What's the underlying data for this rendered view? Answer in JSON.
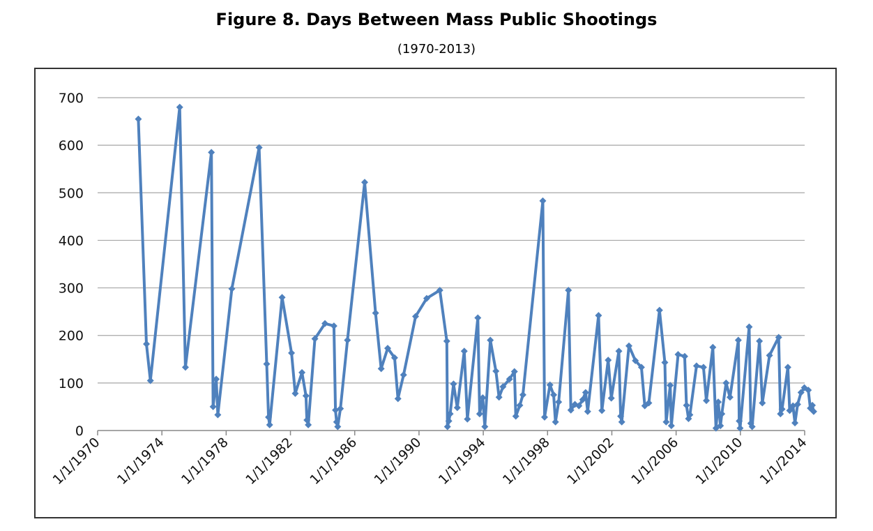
{
  "chart_data": {
    "type": "line",
    "title": "Figure 8. Days Between Mass Public Shootings",
    "subtitle": "(1970-2013)",
    "xlabel": "",
    "ylabel": "",
    "ylim": [
      0,
      700
    ],
    "yticks": [
      0,
      100,
      200,
      300,
      400,
      500,
      600,
      700
    ],
    "xlim": [
      "1970-01-01",
      "2014-01-01"
    ],
    "xtick_labels": [
      "1/1/1970",
      "1/1/1974",
      "1/1/1978",
      "1/1/1982",
      "1/1/1986",
      "1/1/1990",
      "1/1/1994",
      "1/1/1998",
      "1/1/2002",
      "1/1/2006",
      "1/1/2010",
      "1/1/2014"
    ],
    "grid": true,
    "legend": "none",
    "series_color": "#4f81bd",
    "series": [
      {
        "points": [
          [
            "1972-07-15",
            655
          ],
          [
            "1973-01-15",
            182
          ],
          [
            "1973-04-15",
            105
          ],
          [
            "1975-02-10",
            680
          ],
          [
            "1975-06-20",
            133
          ],
          [
            "1977-01-30",
            585
          ],
          [
            "1977-03-10",
            50
          ],
          [
            "1977-05-20",
            108
          ],
          [
            "1977-06-25",
            33
          ],
          [
            "1978-05-10",
            298
          ],
          [
            "1980-01-20",
            595
          ],
          [
            "1980-07-10",
            140
          ],
          [
            "1980-08-20",
            28
          ],
          [
            "1980-09-15",
            12
          ],
          [
            "1981-06-25",
            280
          ],
          [
            "1982-01-25",
            163
          ],
          [
            "1982-04-20",
            78
          ],
          [
            "1982-09-20",
            122
          ],
          [
            "1982-12-20",
            73
          ],
          [
            "1983-01-10",
            22
          ],
          [
            "1983-02-10",
            12
          ],
          [
            "1983-07-10",
            193
          ],
          [
            "1984-02-25",
            225
          ],
          [
            "1984-09-15",
            220
          ],
          [
            "1984-10-20",
            43
          ],
          [
            "1984-11-15",
            18
          ],
          [
            "1984-12-10",
            8
          ],
          [
            "1985-02-10",
            46
          ],
          [
            "1985-07-20",
            190
          ],
          [
            "1986-08-15",
            522
          ],
          [
            "1987-04-20",
            247
          ],
          [
            "1987-08-25",
            130
          ],
          [
            "1988-01-20",
            173
          ],
          [
            "1988-06-25",
            153
          ],
          [
            "1988-09-10",
            67
          ],
          [
            "1989-01-15",
            117
          ],
          [
            "1989-10-15",
            240
          ],
          [
            "1990-06-25",
            278
          ],
          [
            "1991-04-20",
            295
          ],
          [
            "1991-09-25",
            188
          ],
          [
            "1991-10-10",
            8
          ],
          [
            "1991-11-10",
            20
          ],
          [
            "1991-12-10",
            35
          ],
          [
            "1992-02-25",
            98
          ],
          [
            "1992-05-20",
            48
          ],
          [
            "1992-10-25",
            167
          ],
          [
            "1993-01-05",
            24
          ],
          [
            "1993-08-30",
            237
          ],
          [
            "1993-10-10",
            35
          ],
          [
            "1993-12-20",
            69
          ],
          [
            "1994-02-05",
            8
          ],
          [
            "1994-06-10",
            190
          ],
          [
            "1994-10-15",
            125
          ],
          [
            "1994-12-25",
            70
          ],
          [
            "1995-03-25",
            92
          ],
          [
            "1995-08-20",
            108
          ],
          [
            "1995-12-10",
            124
          ],
          [
            "1996-01-10",
            30
          ],
          [
            "1996-04-10",
            53
          ],
          [
            "1996-06-20",
            75
          ],
          [
            "1997-09-15",
            483
          ],
          [
            "1997-10-25",
            28
          ],
          [
            "1998-02-25",
            96
          ],
          [
            "1998-05-20",
            75
          ],
          [
            "1998-06-30",
            18
          ],
          [
            "1998-09-10",
            60
          ],
          [
            "1999-04-20",
            295
          ],
          [
            "1999-06-15",
            43
          ],
          [
            "1999-09-15",
            55
          ],
          [
            "1999-12-15",
            52
          ],
          [
            "2000-03-10",
            65
          ],
          [
            "2000-05-15",
            80
          ],
          [
            "2000-07-01",
            40
          ],
          [
            "2001-03-05",
            242
          ],
          [
            "2001-05-20",
            42
          ],
          [
            "2001-10-10",
            148
          ],
          [
            "2001-12-20",
            68
          ],
          [
            "2002-06-10",
            167
          ],
          [
            "2002-07-20",
            30
          ],
          [
            "2002-08-15",
            18
          ],
          [
            "2003-01-25",
            178
          ],
          [
            "2003-06-20",
            147
          ],
          [
            "2003-11-05",
            133
          ],
          [
            "2004-01-20",
            52
          ],
          [
            "2004-04-20",
            58
          ],
          [
            "2004-12-20",
            253
          ],
          [
            "2005-04-20",
            143
          ],
          [
            "2005-05-20",
            18
          ],
          [
            "2005-08-20",
            95
          ],
          [
            "2005-09-15",
            10
          ],
          [
            "2006-02-15",
            160
          ],
          [
            "2006-07-15",
            156
          ],
          [
            "2006-08-25",
            53
          ],
          [
            "2006-10-10",
            25
          ],
          [
            "2006-11-10",
            33
          ],
          [
            "2007-04-10",
            136
          ],
          [
            "2007-09-15",
            133
          ],
          [
            "2007-11-20",
            63
          ],
          [
            "2008-04-15",
            175
          ],
          [
            "2008-06-25",
            5
          ],
          [
            "2008-08-15",
            60
          ],
          [
            "2008-10-05",
            10
          ],
          [
            "2008-11-05",
            35
          ],
          [
            "2009-02-10",
            100
          ],
          [
            "2009-05-10",
            70
          ],
          [
            "2009-11-15",
            190
          ],
          [
            "2009-12-05",
            20
          ],
          [
            "2009-12-25",
            5
          ],
          [
            "2010-07-20",
            218
          ],
          [
            "2010-08-25",
            15
          ],
          [
            "2010-09-25",
            8
          ],
          [
            "2011-03-10",
            188
          ],
          [
            "2011-05-15",
            58
          ],
          [
            "2011-10-25",
            158
          ],
          [
            "2012-05-20",
            196
          ],
          [
            "2012-06-30",
            35
          ],
          [
            "2012-08-05",
            45
          ],
          [
            "2012-12-15",
            133
          ],
          [
            "2013-01-25",
            42
          ],
          [
            "2013-04-10",
            52
          ],
          [
            "2013-05-25",
            16
          ],
          [
            "2013-07-25",
            55
          ],
          [
            "2013-10-10",
            80
          ],
          [
            "2013-12-25",
            90
          ],
          [
            "2014-03-25",
            85
          ],
          [
            "2014-05-10",
            47
          ],
          [
            "2014-06-25",
            53
          ],
          [
            "2014-07-25",
            40
          ]
        ]
      }
    ]
  }
}
